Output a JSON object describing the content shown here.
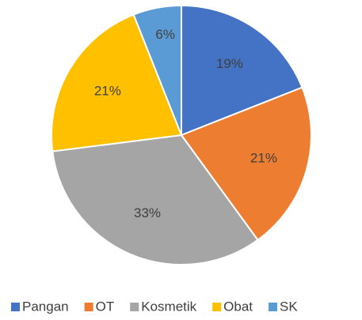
{
  "chart_data": {
    "type": "pie",
    "categories": [
      "Pangan",
      "OT",
      "Kosmetik",
      "Obat",
      "SK"
    ],
    "values": [
      19,
      21,
      33,
      21,
      6
    ],
    "value_labels": [
      "19%",
      "21%",
      "33%",
      "21%",
      "6%"
    ],
    "colors": [
      "#4472c4",
      "#ed7d31",
      "#a5a5a5",
      "#ffc000",
      "#5b9bd5"
    ],
    "legend": "bottom"
  }
}
